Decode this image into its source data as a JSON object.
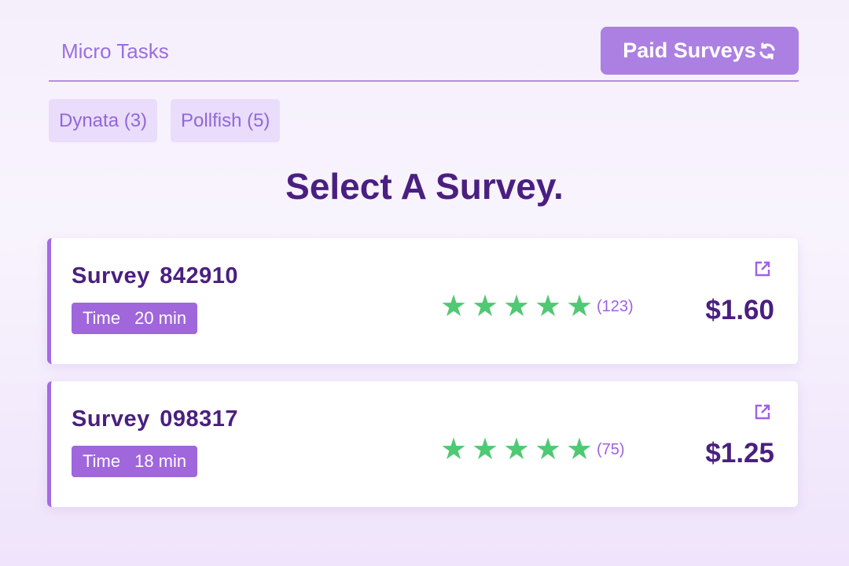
{
  "tabs": {
    "micro": "Micro Tasks",
    "paid": "Paid Surveys"
  },
  "chips": [
    {
      "label": "Dynata (3)"
    },
    {
      "label": "Pollfish (5)"
    }
  ],
  "heading": "Select A Survey.",
  "surveys": [
    {
      "title": "Survey 842910",
      "time_label": "Time",
      "time": "20 min",
      "rating": 5,
      "count": "(123)",
      "price": "$1.60"
    },
    {
      "title": "Survey 098317",
      "time_label": "Time",
      "time": "18 min",
      "rating": 5,
      "count": "(75)",
      "price": "$1.25"
    }
  ],
  "icons": {
    "refresh": "refresh-icon",
    "external": "external-link-icon",
    "star": "star-icon"
  },
  "colors": {
    "accent": "#ab80e2",
    "heading": "#4a1f80",
    "star": "#4fc973"
  }
}
